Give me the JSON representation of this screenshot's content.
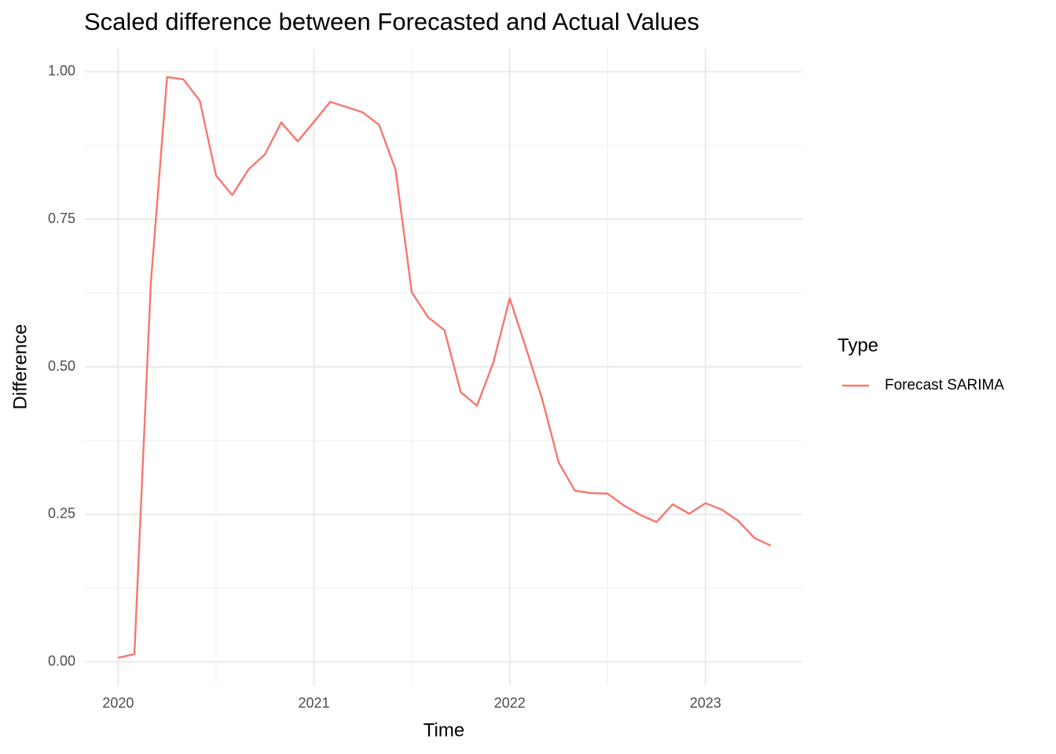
{
  "chart_data": {
    "type": "line",
    "title": "Scaled difference between Forecasted and Actual Values",
    "x_label": "Time",
    "y_label": "Difference",
    "legend_title": "Type",
    "legend_position": "right",
    "x": [
      2020.0,
      2020.083,
      2020.167,
      2020.25,
      2020.333,
      2020.417,
      2020.5,
      2020.583,
      2020.667,
      2020.75,
      2020.833,
      2020.917,
      2021.0,
      2021.083,
      2021.167,
      2021.25,
      2021.333,
      2021.417,
      2021.5,
      2021.583,
      2021.667,
      2021.75,
      2021.833,
      2021.917,
      2022.0,
      2022.083,
      2022.167,
      2022.25,
      2022.333,
      2022.417,
      2022.5,
      2022.583,
      2022.667,
      2022.75,
      2022.833,
      2022.917,
      2023.0,
      2023.083,
      2023.167,
      2023.25,
      2023.333
    ],
    "series": [
      {
        "name": "Forecast SARIMA",
        "color": "#F8766D",
        "values": [
          0.007,
          0.013,
          0.642,
          0.991,
          0.987,
          0.951,
          0.824,
          0.791,
          0.835,
          0.86,
          0.914,
          0.882,
          0.915,
          0.949,
          0.94,
          0.931,
          0.91,
          0.834,
          0.626,
          0.584,
          0.562,
          0.457,
          0.434,
          0.508,
          0.616,
          0.532,
          0.444,
          0.338,
          0.29,
          0.286,
          0.285,
          0.265,
          0.249,
          0.237,
          0.267,
          0.251,
          0.269,
          0.258,
          0.239,
          0.21,
          0.197
        ]
      }
    ],
    "xlim": [
      2019.83,
      2023.494
    ],
    "xticks": [
      2020,
      2021,
      2022,
      2023
    ],
    "ylim": [
      -0.039,
      1.039
    ],
    "yticks": [
      {
        "value": 0,
        "label": "0.00"
      },
      {
        "value": 0.25,
        "label": "0.25"
      },
      {
        "value": 0.5,
        "label": "0.50"
      },
      {
        "value": 0.75,
        "label": "0.75"
      },
      {
        "value": 1,
        "label": "1.00"
      }
    ],
    "grid": true
  }
}
